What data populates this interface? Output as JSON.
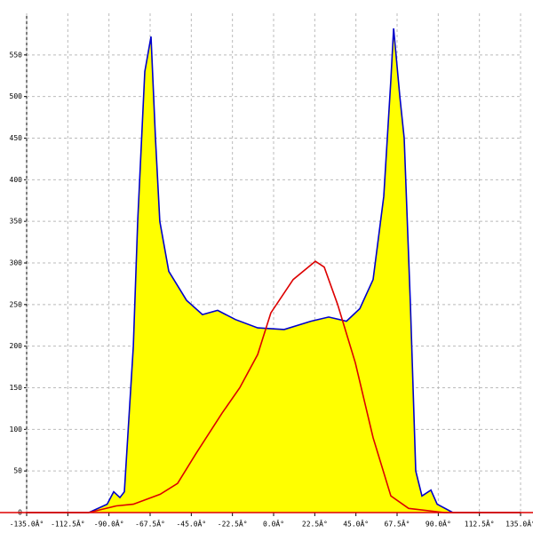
{
  "chart_data": {
    "type": "area_line",
    "series": [
      {
        "color": "#0000cc",
        "fill": "#ffff00",
        "x": [
          -135,
          -101,
          -91,
          -87.4,
          -84,
          -81.6,
          -76.7,
          -74.3,
          -70.4,
          -67,
          -64.6,
          -62.2,
          -57.3,
          -47.6,
          -38.9,
          -30.6,
          -20.9,
          -8.7,
          5.8,
          20.4,
          30.1,
          39.8,
          47.1,
          54.4,
          60.2,
          64.1,
          65.6,
          69,
          71.4,
          74.8,
          77.7,
          81.1,
          86,
          89.4,
          98,
          135
        ],
        "values": [
          0,
          0,
          10,
          25,
          18,
          25,
          200,
          350,
          530,
          572,
          450,
          350,
          290,
          255,
          238,
          243,
          232,
          222,
          220,
          230,
          235,
          230,
          245,
          280,
          380,
          520,
          582,
          500,
          450,
          250,
          50,
          20,
          27,
          10,
          0,
          0
        ]
      },
      {
        "color": "#dd0000",
        "x": [
          -135,
          -101,
          -86,
          -76.7,
          -62,
          -52.5,
          -42.7,
          -28,
          -18.5,
          -8.7,
          -1.5,
          10.7,
          22.8,
          27.7,
          35,
          44.7,
          54.4,
          64.1,
          73.8,
          93.3,
          135
        ],
        "values": [
          0,
          0,
          8,
          10,
          22,
          35,
          70,
          120,
          150,
          190,
          240,
          280,
          302,
          295,
          250,
          180,
          90,
          20,
          5,
          0,
          0
        ]
      }
    ],
    "xlim": [
      -135,
      135
    ],
    "xticks": [
      {
        "value": -135,
        "label": "-135.0Â°"
      },
      {
        "value": -112.5,
        "label": "-112.5Â°"
      },
      {
        "value": -90,
        "label": "-90.0Â°"
      },
      {
        "value": -67.5,
        "label": "-67.5Â°"
      },
      {
        "value": -45,
        "label": "-45.0Â°"
      },
      {
        "value": -22.5,
        "label": "-22.5Â°"
      },
      {
        "value": 0,
        "label": "0.0Â°"
      },
      {
        "value": 22.5,
        "label": "22.5Â°"
      },
      {
        "value": 45,
        "label": "45.0Â°"
      },
      {
        "value": 67.5,
        "label": "67.5Â°"
      },
      {
        "value": 90,
        "label": "90.0Â°"
      },
      {
        "value": 112.5,
        "label": "112.5Â°"
      },
      {
        "value": 135,
        "label": "135.0Â°"
      }
    ],
    "ylim": [
      0,
      600
    ],
    "yticks": [
      0,
      50,
      100,
      150,
      200,
      250,
      300,
      350,
      400,
      450,
      500,
      550
    ],
    "grid": true
  }
}
